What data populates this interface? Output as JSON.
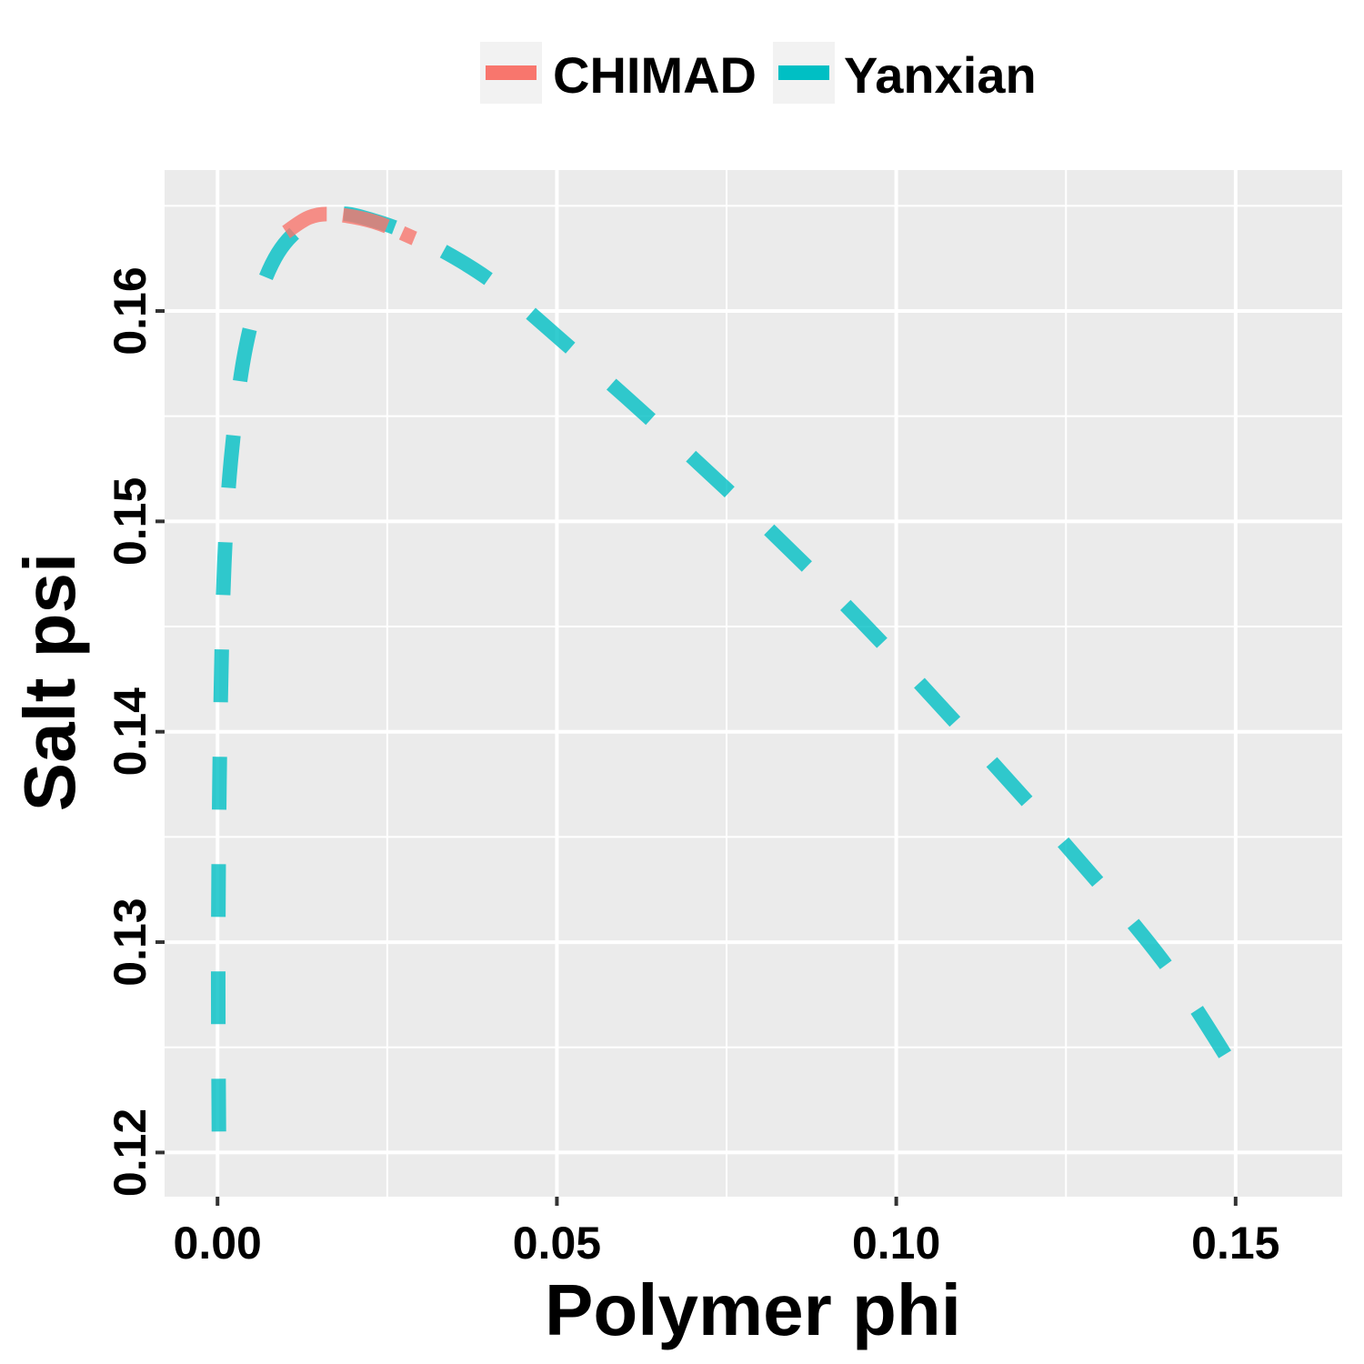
{
  "chart_data": {
    "type": "line",
    "xlabel": "Polymer phi",
    "ylabel": "Salt psi",
    "xlim": [
      -0.0078,
      0.1657
    ],
    "ylim": [
      0.1179,
      0.1667
    ],
    "x_ticks": [
      0.0,
      0.05,
      0.1,
      0.15
    ],
    "x_tick_labels": [
      "0.00",
      "0.05",
      "0.10",
      "0.15"
    ],
    "y_ticks": [
      0.12,
      0.13,
      0.14,
      0.15,
      0.16
    ],
    "y_tick_labels": [
      "0.12",
      "0.13",
      "0.14",
      "0.15",
      "0.16"
    ],
    "grid": true,
    "legend_position": "top",
    "colors": {
      "panel": "#EBEBEB",
      "grid": "#FFFFFF",
      "CHIMAD": "#F8766D",
      "Yanxian": "#00BFC4"
    },
    "series": [
      {
        "name": "CHIMAD",
        "line_style": "dashed",
        "x": [
          0.0101,
          0.0135,
          0.017,
          0.023,
          0.029
        ],
        "y": [
          0.16375,
          0.16445,
          0.1646,
          0.16425,
          0.16345
        ]
      },
      {
        "name": "Yanxian",
        "line_style": "dashed",
        "x": [
          0.0002,
          0.0001,
          0.0002,
          0.0005,
          0.001,
          0.002,
          0.004,
          0.007,
          0.011,
          0.017,
          0.023,
          0.03,
          0.04,
          0.05,
          0.065,
          0.08,
          0.095,
          0.11,
          0.125,
          0.14,
          0.152
        ],
        "y": [
          0.121,
          0.128,
          0.135,
          0.142,
          0.148,
          0.153,
          0.158,
          0.1615,
          0.1636,
          0.1646,
          0.1643,
          0.1634,
          0.1615,
          0.1588,
          0.1545,
          0.15,
          0.1452,
          0.14,
          0.1346,
          0.1288,
          0.1228
        ]
      }
    ]
  }
}
